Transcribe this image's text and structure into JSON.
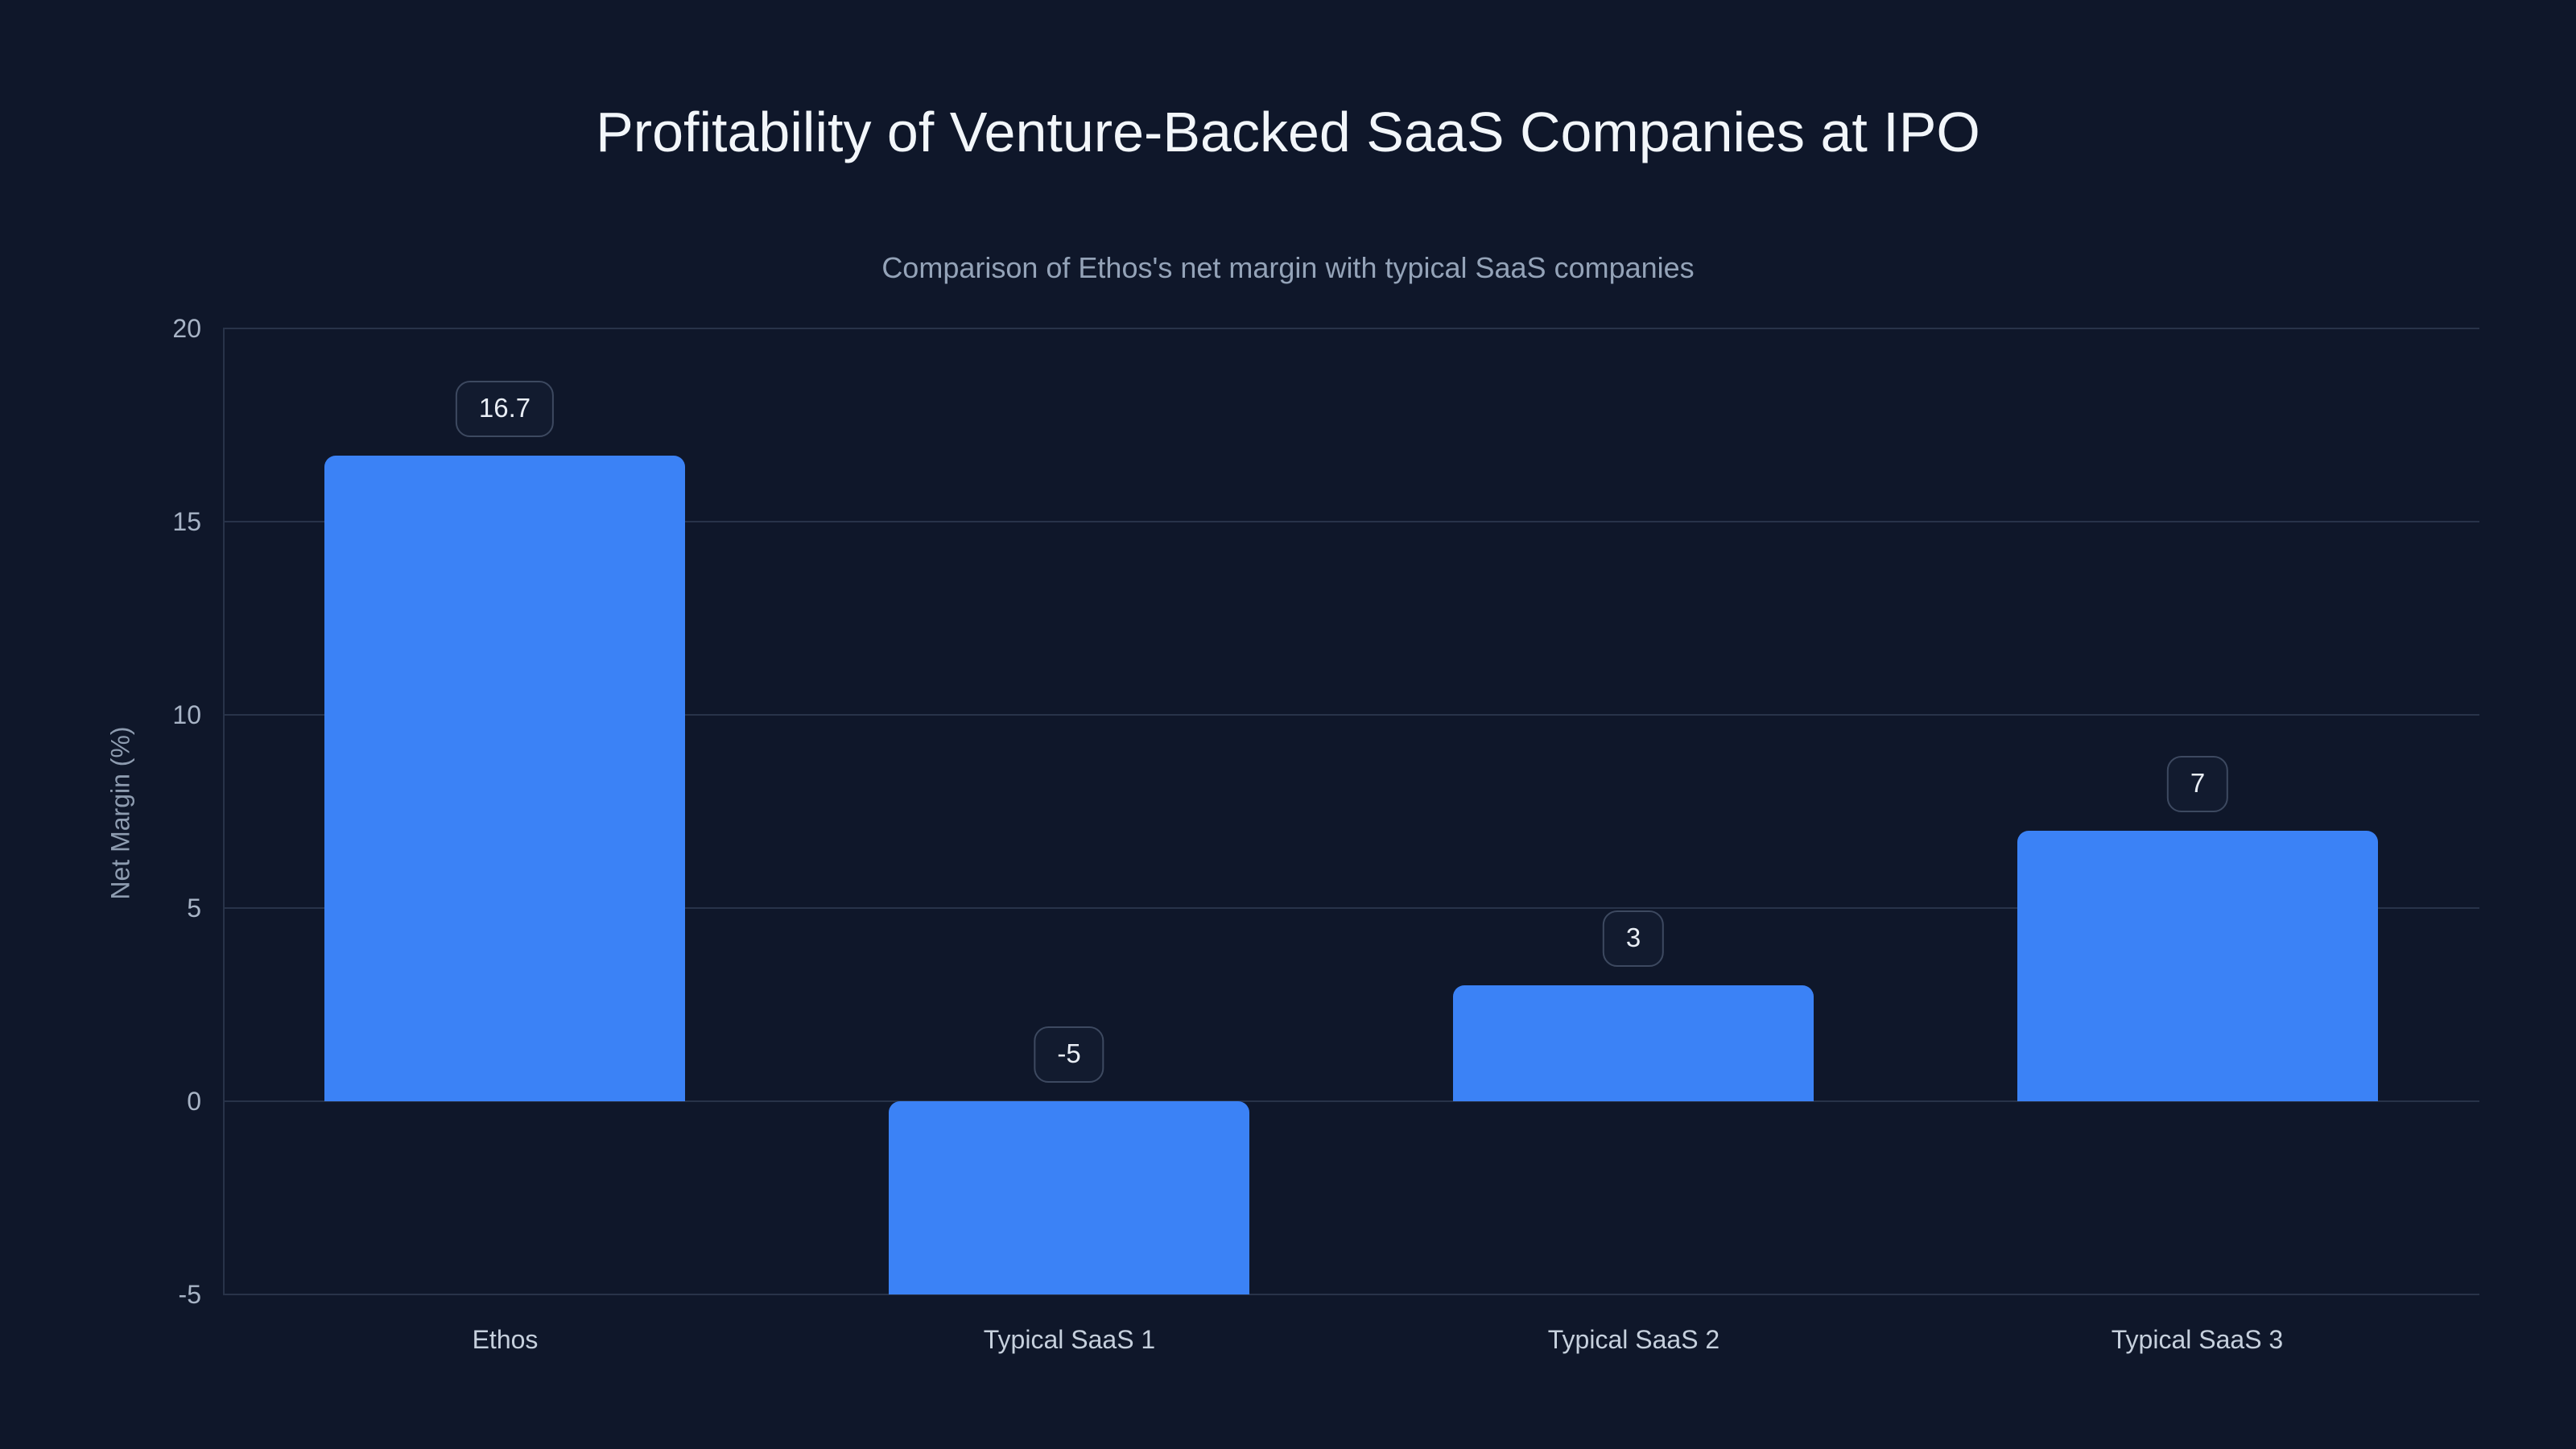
{
  "chart_data": {
    "type": "bar",
    "title": "Profitability of Venture-Backed SaaS Companies at IPO",
    "subtitle": "Comparison of Ethos's net margin with typical SaaS companies",
    "xlabel": "",
    "ylabel": "Net Margin (%)",
    "categories": [
      "Ethos",
      "Typical SaaS 1",
      "Typical SaaS 2",
      "Typical SaaS 3"
    ],
    "values": [
      16.7,
      -5,
      3,
      7
    ],
    "value_labels": [
      "16.7",
      "-5",
      "3",
      "7"
    ],
    "ylim": [
      -5,
      20
    ],
    "yticks": [
      20,
      15,
      10,
      5,
      0,
      -5
    ],
    "grid": true,
    "legend": false,
    "bar_color": "#3b82f6"
  },
  "theme": {
    "background": "#0f172a",
    "grid_color": "#283349",
    "axis_line_color": "#283349",
    "title_color": "#f2f6fa",
    "subtitle_color": "#94a3b8",
    "axis_title_color": "#8e9cb0",
    "tick_label_color": "#a8b4c6",
    "category_label_color": "#c6d0dd",
    "badge_text_color": "#e9eef5",
    "badge_border_color": "#3d4960",
    "badge_bg_color": "#121b2f"
  }
}
